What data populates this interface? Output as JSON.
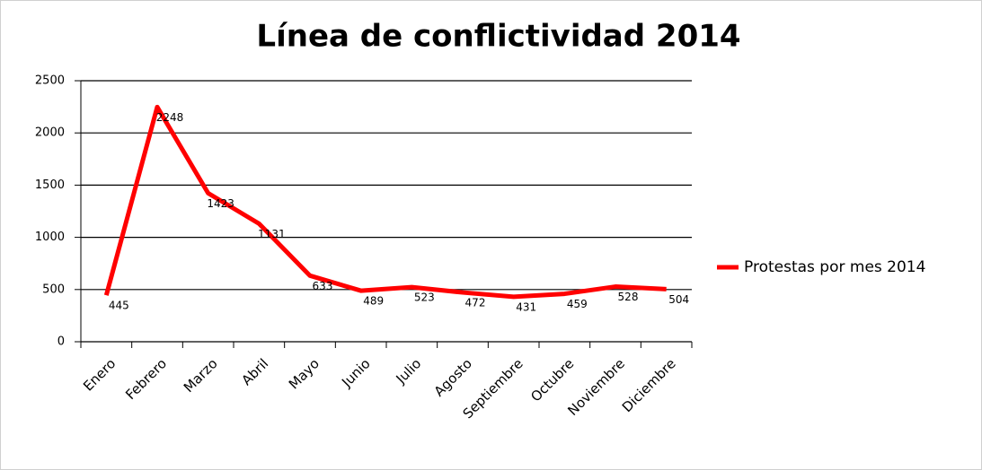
{
  "chart_data": {
    "type": "line",
    "title": "Línea de conflictividad 2014",
    "categories": [
      "Enero",
      "Febrero",
      "Marzo",
      "Abril",
      "Mayo",
      "Junio",
      "Julio",
      "Agosto",
      "Septiembre",
      "Octubre",
      "Noviembre",
      "Diciembre"
    ],
    "series": [
      {
        "name": "Protestas por mes 2014",
        "color": "#ff0000",
        "values": [
          445,
          2248,
          1423,
          1131,
          633,
          489,
          523,
          472,
          431,
          459,
          528,
          504
        ]
      }
    ],
    "ylim": [
      0,
      2500
    ],
    "yticks": [
      0,
      500,
      1000,
      1500,
      2000,
      2500
    ],
    "grid": true,
    "legend": "right"
  }
}
